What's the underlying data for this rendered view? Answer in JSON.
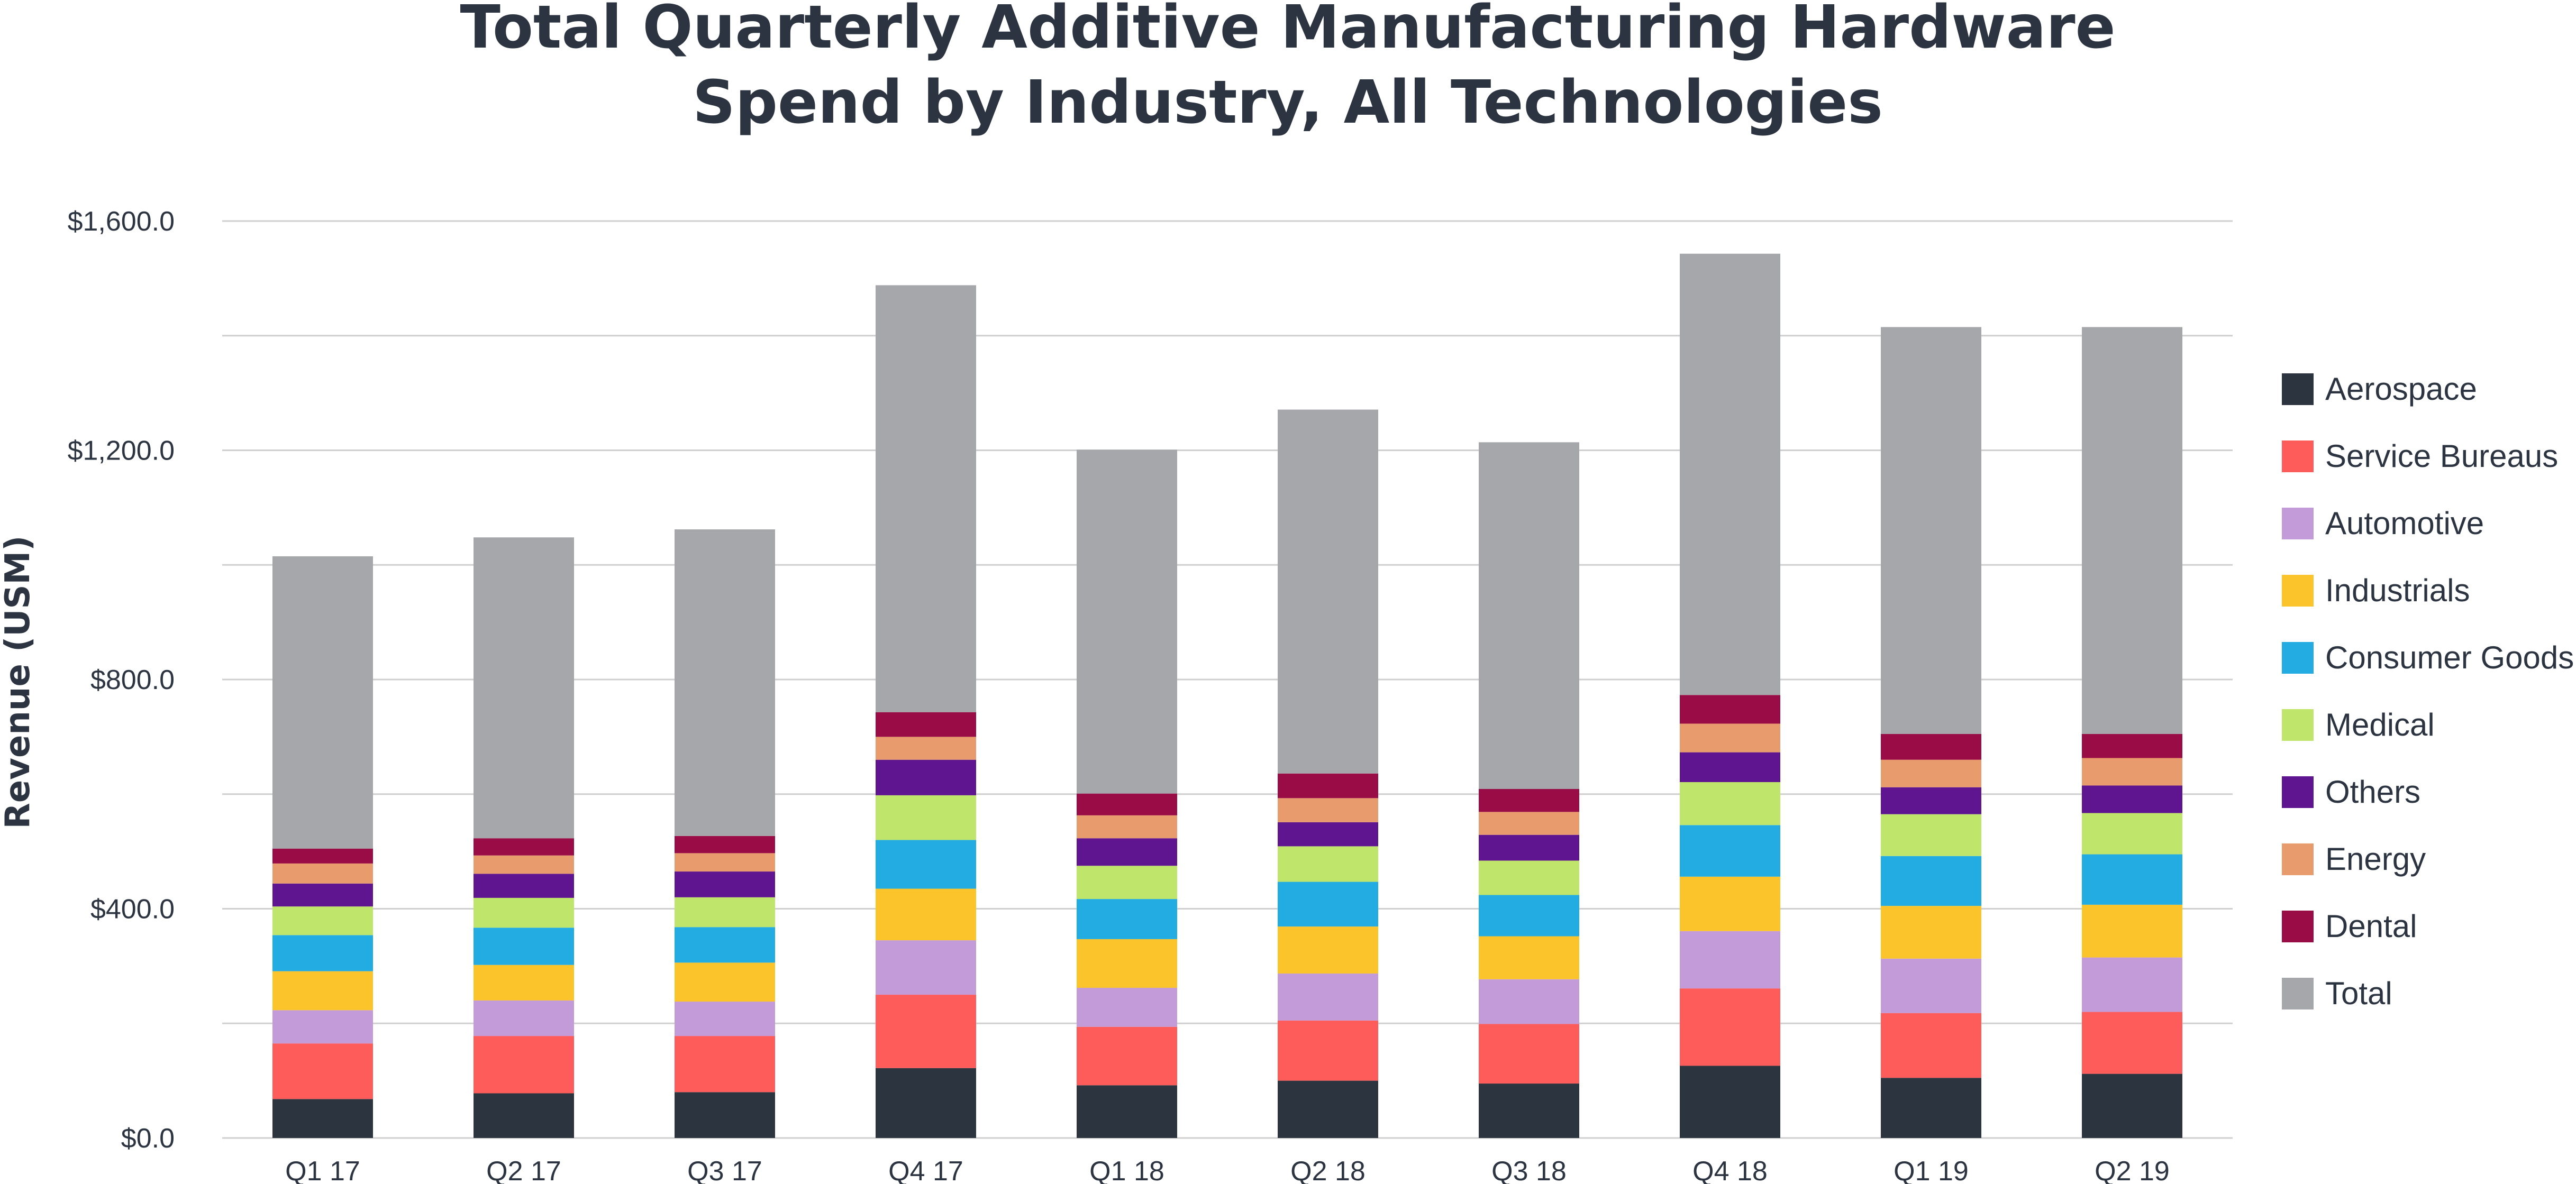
{
  "chart_data": {
    "type": "bar",
    "stacked": true,
    "title": "Total Quarterly Additive Manufacturing Hardware Spend by Industry, All Technologies",
    "title_lines": [
      "Total Quarterly Additive Manufacturing Hardware",
      "Spend by Industry, All Technologies"
    ],
    "xlabel": "",
    "ylabel": "Revenue (USM)",
    "ylim": [
      0,
      1600
    ],
    "yticks": [
      0,
      400,
      800,
      1200,
      1600
    ],
    "ytick_labels": [
      "$0.0",
      "$400.0",
      "$800.0",
      "$1,200.0",
      "$1,600.0"
    ],
    "grid": true,
    "legend_position": "right",
    "categories": [
      "Q1 17",
      "Q2 17",
      "Q3 17",
      "Q4 17",
      "Q1 18",
      "Q2 18",
      "Q3 18",
      "Q4 18",
      "Q1 19",
      "Q2 19"
    ],
    "series": [
      {
        "name": "Aerospace",
        "color": "#2c3440",
        "values": [
          68,
          78,
          80,
          122,
          92,
          100,
          95,
          126,
          105,
          112
        ]
      },
      {
        "name": "Service Bureaus",
        "color": "#fe5c5a",
        "values": [
          97,
          100,
          98,
          128,
          102,
          105,
          104,
          135,
          113,
          108
        ]
      },
      {
        "name": "Automotive",
        "color": "#c39bd8",
        "values": [
          58,
          62,
          60,
          95,
          68,
          82,
          78,
          100,
          95,
          95
        ]
      },
      {
        "name": "Industrials",
        "color": "#fcc42b",
        "values": [
          68,
          62,
          68,
          90,
          85,
          82,
          75,
          95,
          92,
          92
        ]
      },
      {
        "name": "Consumer Goods",
        "color": "#23ace2",
        "values": [
          63,
          65,
          62,
          85,
          70,
          78,
          72,
          90,
          87,
          88
        ]
      },
      {
        "name": "Medical",
        "color": "#bfe66a",
        "values": [
          50,
          52,
          52,
          78,
          58,
          62,
          60,
          75,
          73,
          72
        ]
      },
      {
        "name": "Others",
        "color": "#5f1590",
        "values": [
          40,
          42,
          45,
          62,
          48,
          42,
          45,
          52,
          47,
          48
        ]
      },
      {
        "name": "Energy",
        "color": "#e89c6e",
        "values": [
          35,
          32,
          32,
          40,
          40,
          42,
          40,
          50,
          48,
          48
        ]
      },
      {
        "name": "Dental",
        "color": "#9a0c45",
        "values": [
          26,
          30,
          30,
          43,
          38,
          43,
          40,
          50,
          45,
          42
        ]
      },
      {
        "name": "Total",
        "color": "#a6a7aa",
        "values": [
          510,
          525,
          535,
          745,
          600,
          635,
          605,
          770,
          710,
          710
        ]
      }
    ]
  }
}
